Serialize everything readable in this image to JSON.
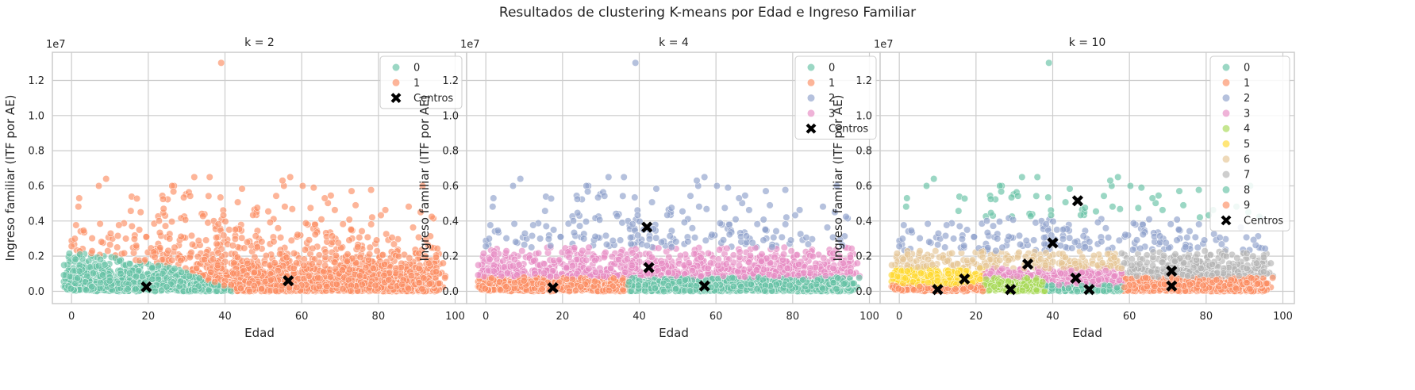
{
  "suptitle": "Resultados de clustering K-means por Edad e Ingreso Familiar",
  "palette": [
    "#66c2a5",
    "#fc8d62",
    "#8da0cb",
    "#e78ac3",
    "#a6d854",
    "#ffd92f",
    "#e5c494",
    "#b3b3b3",
    "#66c2a5",
    "#fc8d62"
  ],
  "centers_color": "#000000",
  "chart_data": [
    {
      "type": "scatter",
      "title": "k = 2",
      "xlabel": "Edad",
      "ylabel": "Ingreso familiar (ITF por AE)",
      "offset_text": "1e7",
      "xlim": [
        -5,
        103
      ],
      "ylim": [
        -700000,
        13600000
      ],
      "xticks": [
        0,
        20,
        40,
        60,
        80,
        100
      ],
      "yticks": [
        0,
        2000000,
        4000000,
        6000000,
        8000000,
        10000000,
        12000000
      ],
      "ytick_labels": [
        "0.0",
        "0.2",
        "0.4",
        "0.6",
        "0.8",
        "1.0",
        "1.2"
      ],
      "grid": true,
      "legend_position": "upper right",
      "legend": [
        "0",
        "1",
        "Centros"
      ],
      "clusters": [
        {
          "label": "0",
          "color_index": 0,
          "region": "below",
          "boundary": [
            [
              -2,
              2300000
            ],
            [
              10,
              2000000
            ],
            [
              25,
              1500000
            ],
            [
              35,
              700000
            ],
            [
              43,
              0
            ]
          ]
        },
        {
          "label": "1",
          "color_index": 1,
          "region": "above"
        }
      ],
      "outliers": [
        [
          39,
          13000000
        ],
        [
          9,
          6400000
        ],
        [
          32,
          6500000
        ],
        [
          36,
          6500000
        ],
        [
          55,
          6300000
        ],
        [
          57,
          6500000
        ],
        [
          73,
          5700000
        ],
        [
          66,
          5300000
        ],
        [
          91,
          4500000
        ],
        [
          2,
          5300000
        ],
        [
          18,
          4500000
        ],
        [
          24,
          4700000
        ]
      ],
      "centers": [
        [
          19.5,
          250000
        ],
        [
          56.5,
          600000
        ]
      ]
    },
    {
      "type": "scatter",
      "title": "k = 4",
      "xlabel": "Edad",
      "ylabel": "Ingreso familiar (ITF por AE)",
      "offset_text": "1e7",
      "xlim": [
        -5,
        103
      ],
      "ylim": [
        -700000,
        13600000
      ],
      "xticks": [
        0,
        20,
        40,
        60,
        80,
        100
      ],
      "yticks": [
        0,
        2000000,
        4000000,
        6000000,
        8000000,
        10000000,
        12000000
      ],
      "ytick_labels": [
        "0.0",
        "0.2",
        "0.4",
        "0.6",
        "0.8",
        "1.0",
        "1.2"
      ],
      "grid": true,
      "legend_position": "upper right",
      "legend": [
        "0",
        "1",
        "2",
        "3",
        "Centros"
      ],
      "clusters": [
        {
          "label": "0",
          "color_index": 0,
          "region": "age>37 and income<800000"
        },
        {
          "label": "1",
          "color_index": 1,
          "region": "age<=37 and income<800000"
        },
        {
          "label": "2",
          "color_index": 2,
          "region": "income>2500000"
        },
        {
          "label": "3",
          "color_index": 3,
          "region": "800000<=income<=2500000"
        }
      ],
      "outliers": [
        [
          39,
          13000000
        ],
        [
          9,
          6400000
        ],
        [
          32,
          6500000
        ],
        [
          36,
          6500000
        ],
        [
          55,
          6300000
        ],
        [
          57,
          6500000
        ],
        [
          73,
          5700000
        ],
        [
          66,
          5300000
        ],
        [
          91,
          4500000
        ],
        [
          2,
          5300000
        ]
      ],
      "centers": [
        [
          17.5,
          200000
        ],
        [
          42,
          3650000
        ],
        [
          42.5,
          1350000
        ],
        [
          57,
          300000
        ]
      ]
    },
    {
      "type": "scatter",
      "title": "k = 10",
      "xlabel": "Edad",
      "ylabel": "Ingreso familiar (ITF por AE)",
      "offset_text": "1e7",
      "xlim": [
        -5,
        103
      ],
      "ylim": [
        -700000,
        13600000
      ],
      "xticks": [
        0,
        20,
        40,
        60,
        80,
        100
      ],
      "yticks": [
        0,
        2000000,
        4000000,
        6000000,
        8000000,
        10000000,
        12000000
      ],
      "ytick_labels": [
        "0.0",
        "0.2",
        "0.4",
        "0.6",
        "0.8",
        "1.0",
        "1.2"
      ],
      "grid": true,
      "legend_position": "upper right",
      "legend": [
        "0",
        "1",
        "2",
        "3",
        "4",
        "5",
        "6",
        "7",
        "8",
        "9",
        "Centros"
      ],
      "clusters": [
        {
          "label": "0",
          "color_index": 0
        },
        {
          "label": "1",
          "color_index": 1
        },
        {
          "label": "2",
          "color_index": 2
        },
        {
          "label": "3",
          "color_index": 3
        },
        {
          "label": "4",
          "color_index": 4
        },
        {
          "label": "5",
          "color_index": 5
        },
        {
          "label": "6",
          "color_index": 6
        },
        {
          "label": "7",
          "color_index": 7
        },
        {
          "label": "8",
          "color_index": 8
        },
        {
          "label": "9",
          "color_index": 9
        }
      ],
      "outliers": [
        [
          39,
          13000000
        ],
        [
          9,
          6400000
        ],
        [
          32,
          6500000
        ],
        [
          36,
          6500000
        ],
        [
          55,
          6300000
        ],
        [
          57,
          6500000
        ],
        [
          73,
          5700000
        ],
        [
          66,
          5300000
        ],
        [
          91,
          4500000
        ],
        [
          2,
          5300000
        ]
      ],
      "centers": [
        [
          46.5,
          5150000
        ],
        [
          40,
          2750000
        ],
        [
          33.5,
          1550000
        ],
        [
          17,
          700000
        ],
        [
          71,
          1150000
        ],
        [
          46,
          750000
        ],
        [
          10,
          100000
        ],
        [
          29,
          100000
        ],
        [
          49.5,
          100000
        ],
        [
          71,
          300000
        ]
      ]
    }
  ]
}
